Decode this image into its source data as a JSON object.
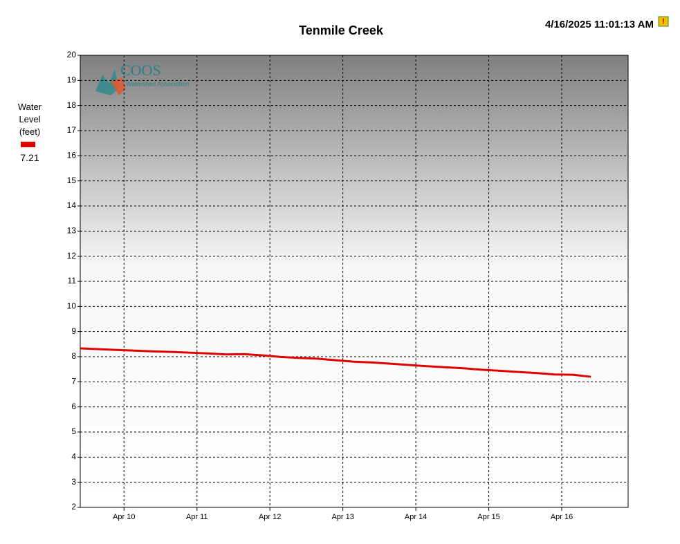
{
  "chart_data": {
    "type": "line",
    "title": "Tenmile Creek",
    "timestamp": "4/16/2025 11:01:13 AM",
    "logo": {
      "name": "COOS",
      "subtitle": "Watershed Association"
    },
    "x": [
      9.4,
      9.65,
      9.9,
      10.15,
      10.4,
      10.65,
      10.9,
      11.15,
      11.4,
      11.65,
      11.9,
      12.15,
      12.4,
      12.65,
      12.9,
      13.15,
      13.4,
      13.65,
      13.9,
      14.15,
      14.4,
      14.65,
      14.9,
      15.15,
      15.4,
      15.65,
      15.9,
      16.15,
      16.4
    ],
    "series": [
      {
        "name": "Water Level (feet)",
        "color": "#e00000",
        "latest_value": 7.21,
        "values": [
          8.33,
          8.3,
          8.27,
          8.24,
          8.21,
          8.19,
          8.16,
          8.13,
          8.09,
          8.1,
          8.05,
          7.99,
          7.95,
          7.92,
          7.86,
          7.8,
          7.77,
          7.72,
          7.67,
          7.62,
          7.58,
          7.54,
          7.48,
          7.44,
          7.39,
          7.35,
          7.29,
          7.28,
          7.2
        ]
      }
    ],
    "xlim": [
      9.4,
      16.91
    ],
    "xticks": [
      {
        "value": 10,
        "label": "Apr 10"
      },
      {
        "value": 11,
        "label": "Apr 11"
      },
      {
        "value": 12,
        "label": "Apr 12"
      },
      {
        "value": 13,
        "label": "Apr 13"
      },
      {
        "value": 14,
        "label": "Apr 14"
      },
      {
        "value": 15,
        "label": "Apr 15"
      },
      {
        "value": 16,
        "label": "Apr 16"
      }
    ],
    "ylim": [
      2,
      20
    ],
    "yticks": [
      2,
      3,
      4,
      5,
      6,
      7,
      8,
      9,
      10,
      11,
      12,
      13,
      14,
      15,
      16,
      17,
      18,
      19,
      20
    ],
    "grid": true
  }
}
